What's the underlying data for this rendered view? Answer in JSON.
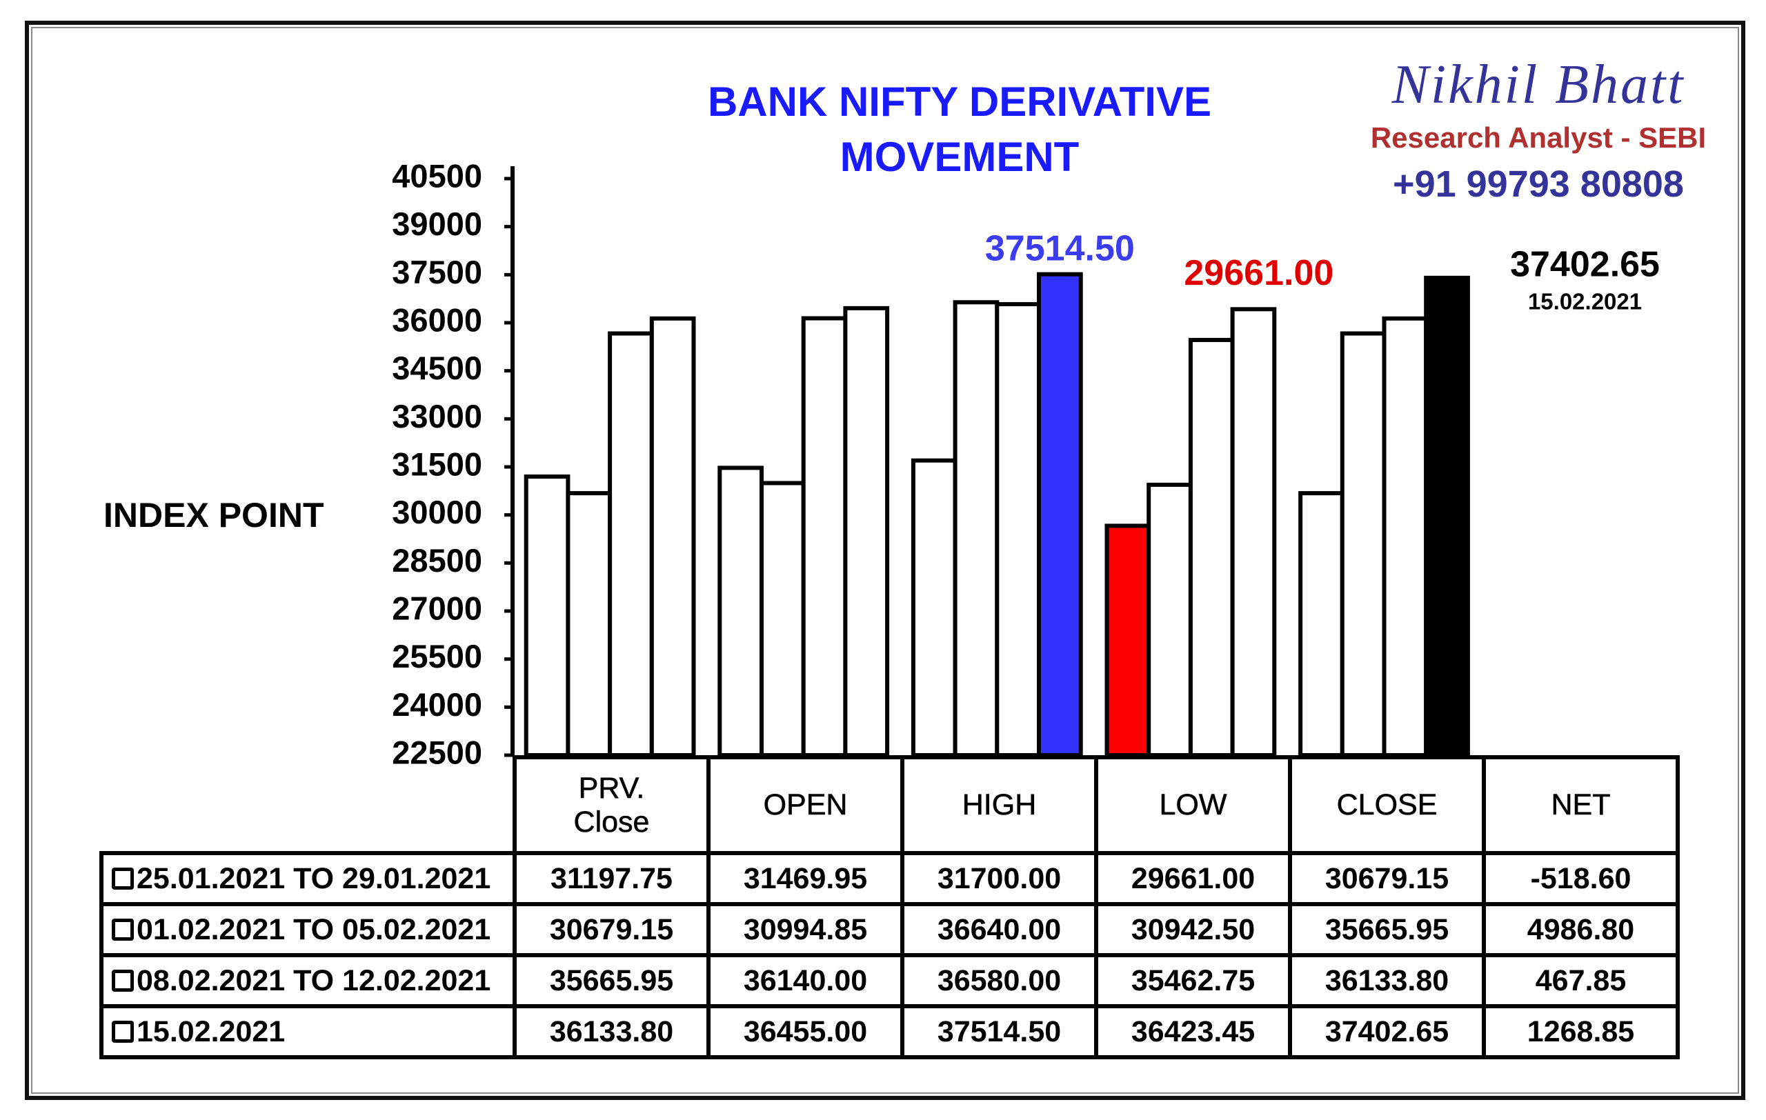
{
  "branding": {
    "name": "Nikhil Bhatt",
    "role": "Research Analyst - SEBI",
    "phone": "+91 99793 80808"
  },
  "chart_data": {
    "type": "bar",
    "title": "BANK NIFTY DERIVATIVE\nMOVEMENT",
    "y_label": "INDEX POINT",
    "categories": [
      "PRV.\nClose",
      "OPEN",
      "HIGH",
      "LOW",
      "CLOSE"
    ],
    "ylim": [
      22500,
      40500
    ],
    "yticks": [
      22500,
      24000,
      25500,
      27000,
      28500,
      30000,
      31500,
      33000,
      34500,
      36000,
      37500,
      39000,
      40500
    ],
    "net_name": "NET",
    "series": [
      {
        "name": "25.01.2021 TO 29.01.2021",
        "colors": [
          "#ffffff",
          "#ffffff",
          "#ffffff",
          "#ff0000",
          "#ffffff"
        ],
        "values": [
          31197.75,
          31469.95,
          31700,
          29661,
          30679.15
        ],
        "value_labels": [
          "31197.75",
          "31469.95",
          "31700.00",
          "29661.00",
          "30679.15"
        ],
        "net": -518.6,
        "net_label": "-518.60"
      },
      {
        "name": "01.02.2021 TO 05.02.2021",
        "colors": [
          "#ffffff",
          "#ffffff",
          "#ffffff",
          "#ffffff",
          "#ffffff"
        ],
        "values": [
          30679.15,
          30994.85,
          36640,
          30942.5,
          35665.95
        ],
        "value_labels": [
          "30679.15",
          "30994.85",
          "36640.00",
          "30942.50",
          "35665.95"
        ],
        "net": 4986.8,
        "net_label": "4986.80"
      },
      {
        "name": "08.02.2021 TO 12.02.2021",
        "colors": [
          "#ffffff",
          "#ffffff",
          "#ffffff",
          "#ffffff",
          "#ffffff"
        ],
        "values": [
          35665.95,
          36140,
          36580,
          35462.75,
          36133.8
        ],
        "value_labels": [
          "35665.95",
          "36140.00",
          "36580.00",
          "35462.75",
          "36133.80"
        ],
        "net": 467.85,
        "net_label": "467.85"
      },
      {
        "name": "15.02.2021",
        "colors": [
          "#ffffff",
          "#ffffff",
          "#3333ff",
          "#ffffff",
          "#000000"
        ],
        "values": [
          36133.8,
          36455,
          37514.5,
          36423.45,
          37402.65
        ],
        "value_labels": [
          "36133.80",
          "36455.00",
          "37514.50",
          "36423.45",
          "37402.65"
        ],
        "net": 1268.85,
        "net_label": "1268.85"
      }
    ],
    "annotations": [
      {
        "text": "37514.50",
        "color": "#3b3bf0"
      },
      {
        "text": "29661.00",
        "color": "#e00000"
      },
      {
        "text": "37402.65",
        "color": "#000000",
        "note": "15.02.2021"
      }
    ]
  }
}
